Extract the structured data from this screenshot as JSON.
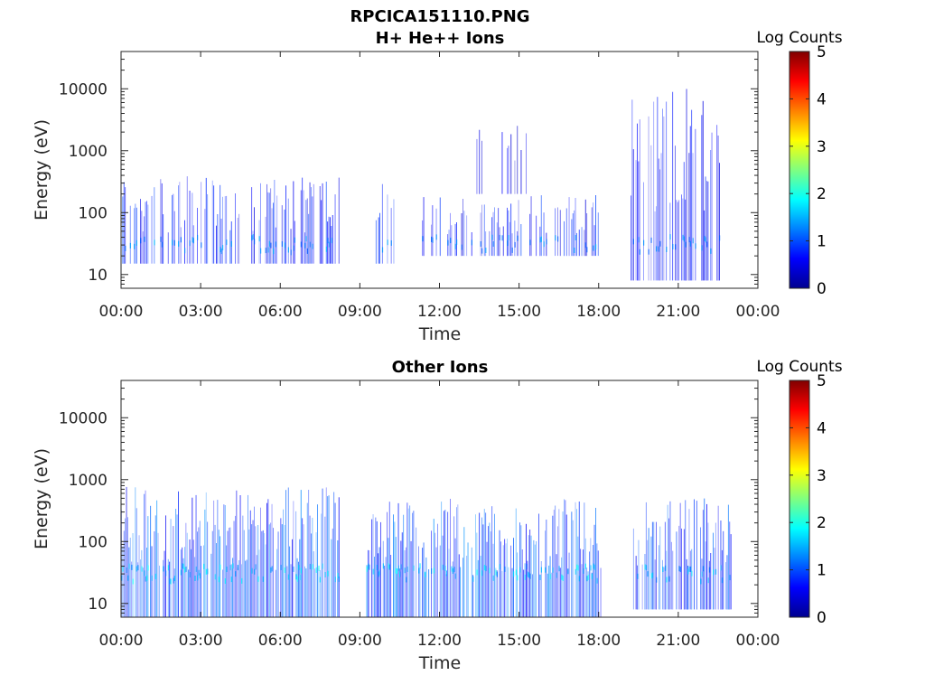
{
  "figure_title": "RPCICA151110.PNG",
  "chart_data": [
    {
      "type": "heatmap",
      "title": "H+ He++ Ions",
      "xlabel": "Time",
      "ylabel": "Energy (eV)",
      "x_tick_labels": [
        "00:00",
        "03:00",
        "06:00",
        "09:00",
        "12:00",
        "15:00",
        "18:00",
        "21:00",
        "00:00"
      ],
      "x_range_hours": [
        0,
        24
      ],
      "y_scale": "log",
      "y_tick_labels": [
        "10",
        "100",
        "1000",
        "10000"
      ],
      "y_range": [
        6,
        40000
      ],
      "colorbar": {
        "label": "Log Counts",
        "range": [
          0,
          5
        ],
        "tick_labels": [
          "0",
          "1",
          "2",
          "3",
          "4",
          "5"
        ]
      },
      "activity_bands": [
        {
          "start_h": 0.0,
          "end_h": 8.2,
          "low_eV": 15,
          "high_eV": 400,
          "intensity": 0.9,
          "density": 0.55
        },
        {
          "start_h": 9.5,
          "end_h": 10.3,
          "low_eV": 15,
          "high_eV": 300,
          "intensity": 0.9,
          "density": 0.4
        },
        {
          "start_h": 11.2,
          "end_h": 18.0,
          "low_eV": 20,
          "high_eV": 200,
          "intensity": 0.9,
          "density": 0.45
        },
        {
          "start_h": 13.3,
          "end_h": 15.5,
          "low_eV": 200,
          "high_eV": 5000,
          "intensity": 0.5,
          "density": 0.15
        },
        {
          "start_h": 19.2,
          "end_h": 22.6,
          "low_eV": 8,
          "high_eV": 10000,
          "intensity": 0.7,
          "density": 0.75
        }
      ]
    },
    {
      "type": "heatmap",
      "title": "Other Ions",
      "xlabel": "Time",
      "ylabel": "Energy (eV)",
      "x_tick_labels": [
        "00:00",
        "03:00",
        "06:00",
        "09:00",
        "12:00",
        "15:00",
        "18:00",
        "21:00",
        "00:00"
      ],
      "x_range_hours": [
        0,
        24
      ],
      "y_scale": "log",
      "y_tick_labels": [
        "10",
        "100",
        "1000",
        "10000"
      ],
      "y_range": [
        6,
        40000
      ],
      "colorbar": {
        "label": "Log Counts",
        "range": [
          0,
          5
        ],
        "tick_labels": [
          "0",
          "1",
          "2",
          "3",
          "4",
          "5"
        ]
      },
      "activity_bands": [
        {
          "start_h": 0.0,
          "end_h": 8.2,
          "low_eV": 6,
          "high_eV": 800,
          "intensity": 1.4,
          "density": 0.9
        },
        {
          "start_h": 9.2,
          "end_h": 18.1,
          "low_eV": 6,
          "high_eV": 500,
          "intensity": 1.4,
          "density": 0.85
        },
        {
          "start_h": 19.3,
          "end_h": 23.0,
          "low_eV": 8,
          "high_eV": 500,
          "intensity": 1.2,
          "density": 0.8
        }
      ]
    }
  ]
}
